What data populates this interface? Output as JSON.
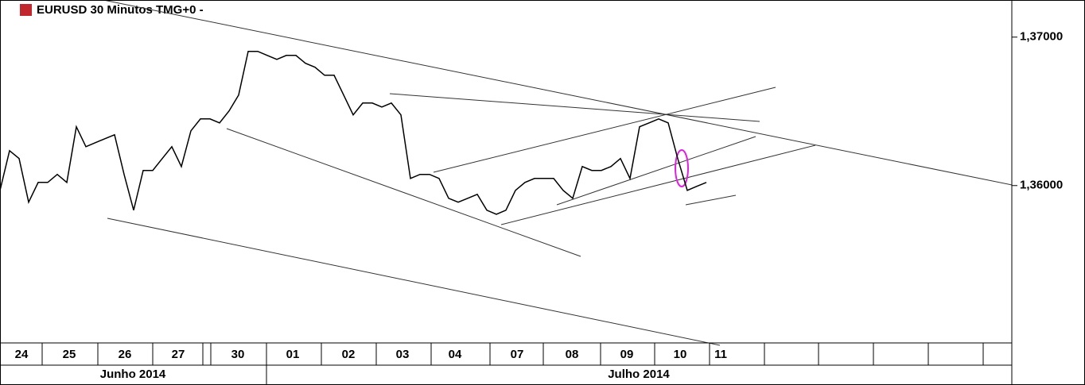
{
  "chart_data": {
    "type": "line",
    "title": "EURUSD 30 Minutos TMG+0  -",
    "days": [
      "24",
      "25",
      "26",
      "27",
      "30",
      "01",
      "02",
      "03",
      "04",
      "07",
      "08",
      "09",
      "10",
      "11"
    ],
    "months": [
      "Junho 2014",
      "Julho 2014"
    ],
    "ylim": [
      1.3494,
      1.3725
    ],
    "yticks": [
      {
        "value": 1.37,
        "label": "1,37000"
      },
      {
        "value": 1.36,
        "label": "1,36000"
      }
    ],
    "series": [
      {
        "name": "EURUSD",
        "color": "#000000",
        "values": [
          1.35968,
          1.36235,
          1.36182,
          1.35888,
          1.36021,
          1.36021,
          1.36075,
          1.36021,
          1.36396,
          1.36262,
          1.36289,
          1.36316,
          1.36342,
          1.36075,
          1.35834,
          1.36102,
          1.36102,
          1.36182,
          1.36262,
          1.36128,
          1.36369,
          1.36449,
          1.36449,
          1.36422,
          1.36503,
          1.3661,
          1.36904,
          1.36904,
          1.36877,
          1.3685,
          1.36877,
          1.36877,
          1.36824,
          1.36797,
          1.36743,
          1.36743,
          1.3661,
          1.36476,
          1.36556,
          1.36556,
          1.36529,
          1.36556,
          1.36476,
          1.36048,
          1.36075,
          1.36075,
          1.36048,
          1.35914,
          1.35888,
          1.35914,
          1.35941,
          1.35834,
          1.35807,
          1.35834,
          1.35968,
          1.36021,
          1.36048,
          1.36048,
          1.36048,
          1.35968,
          1.35914,
          1.36128,
          1.36102,
          1.36102,
          1.36128,
          1.36182,
          1.36048,
          1.36396,
          1.36422,
          1.36449,
          1.36422,
          1.36182,
          1.35968,
          1.35995,
          1.36021
        ]
      }
    ]
  }
}
